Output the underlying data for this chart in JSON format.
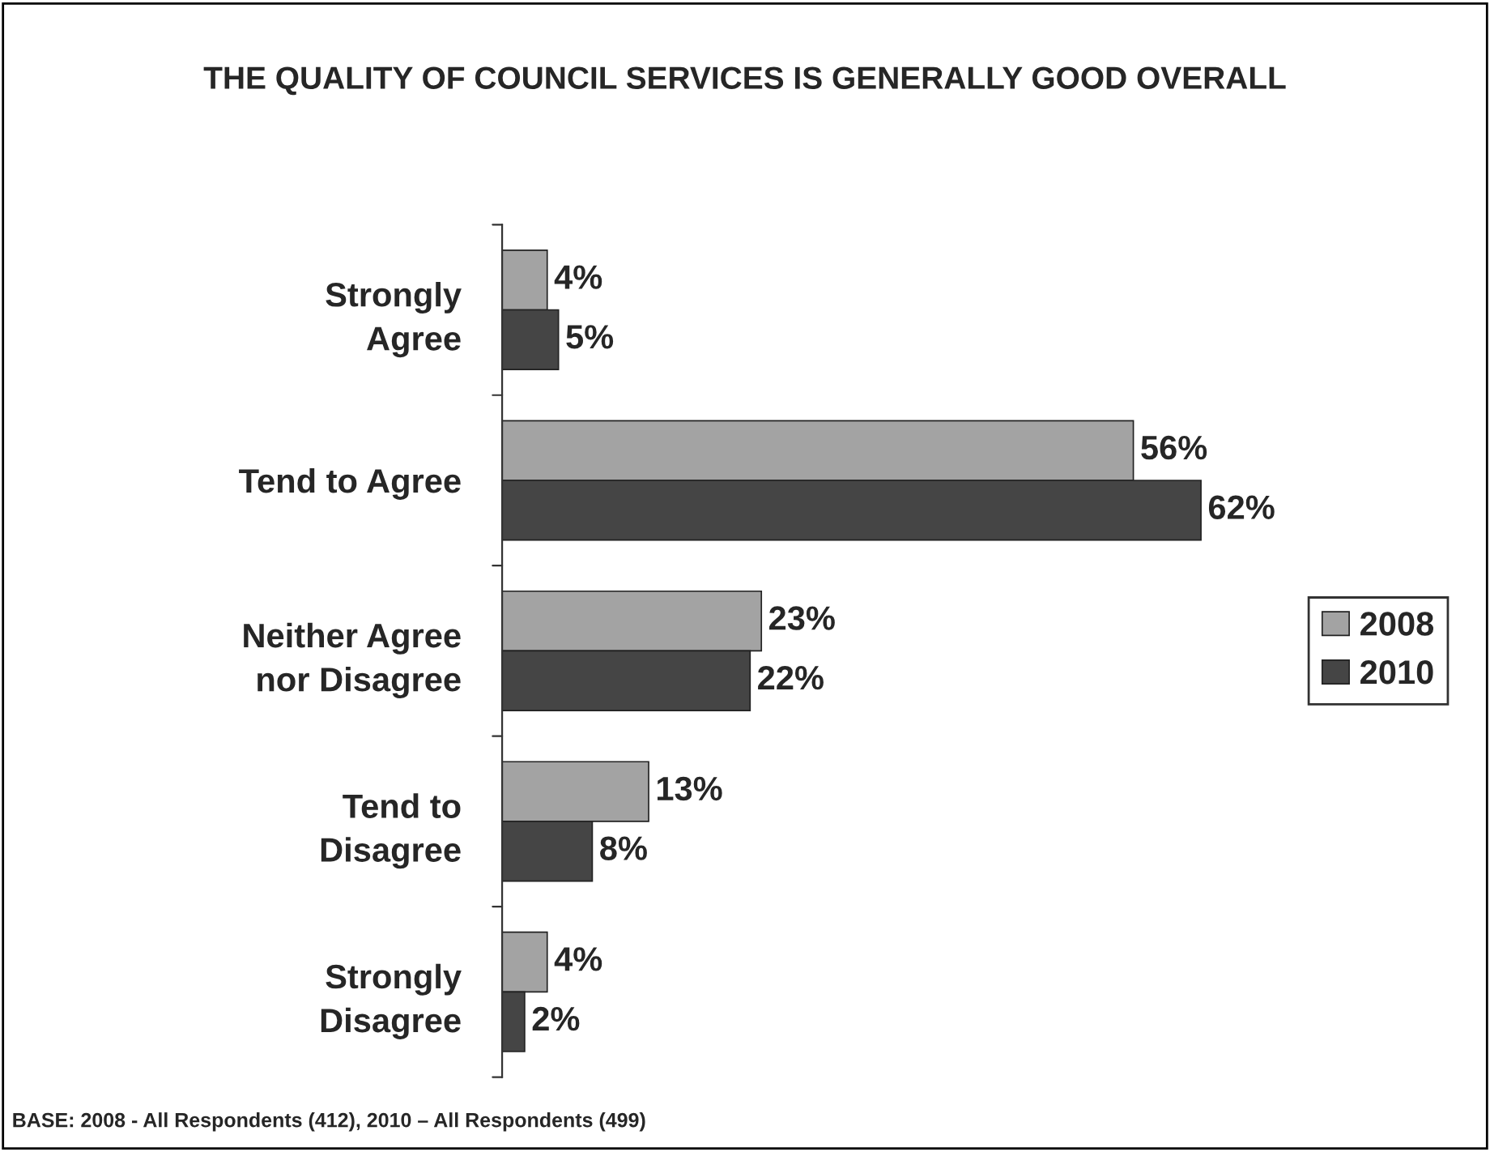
{
  "chart_data": {
    "type": "bar",
    "orientation": "horizontal",
    "title": "THE QUALITY OF COUNCIL SERVICES IS GENERALLY GOOD OVERALL",
    "categories": [
      "Strongly\nAgree",
      "Tend to Agree",
      "Neither Agree\nnor Disagree",
      "Tend to\nDisagree",
      "Strongly\nDisagree"
    ],
    "series": [
      {
        "name": "2008",
        "color": "#a3a3a3",
        "values": [
          4,
          56,
          23,
          13,
          4
        ],
        "value_labels": [
          "4%",
          "56%",
          "23%",
          "13%",
          "4%"
        ]
      },
      {
        "name": "2010",
        "color": "#454545",
        "values": [
          5,
          62,
          22,
          8,
          2
        ],
        "value_labels": [
          "5%",
          "62%",
          "22%",
          "8%",
          "2%"
        ]
      }
    ],
    "legend": "right",
    "grid": false,
    "annotations": [
      "BASE: 2008 - All Respondents (412), 2010 – All Respondents (499)"
    ]
  }
}
